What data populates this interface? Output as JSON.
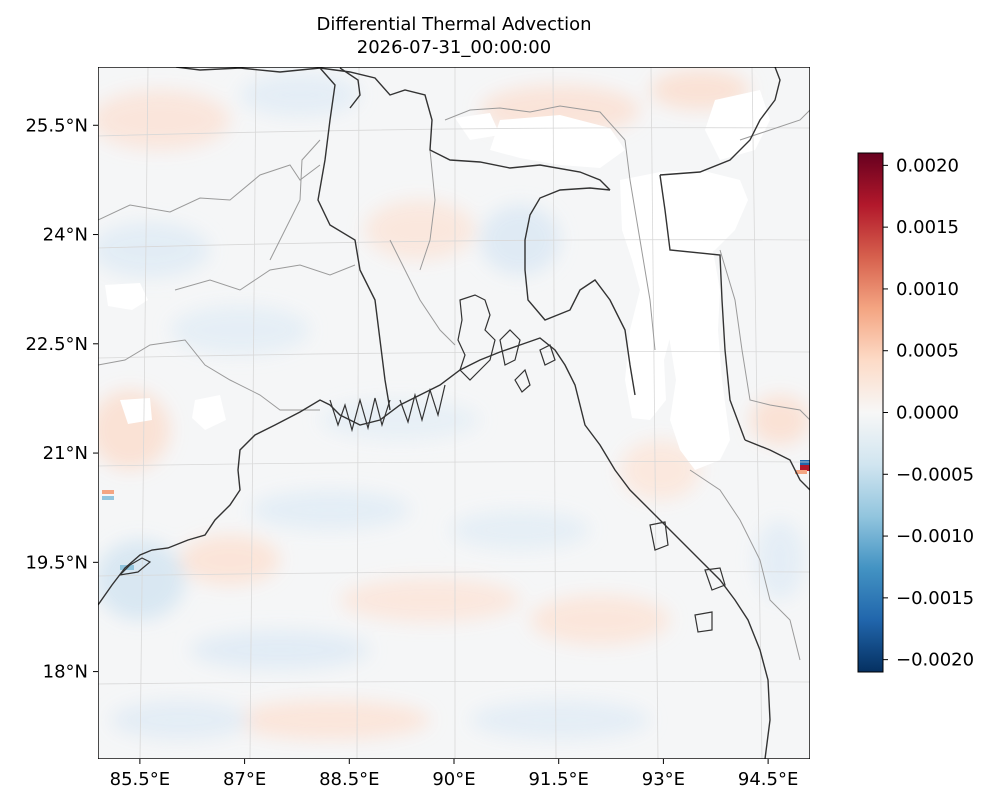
{
  "chart_data": {
    "type": "map",
    "title": "Differential Thermal Advection",
    "subtitle": "2026-07-31_00:00:00",
    "lon_range": [
      84.9,
      95.1
    ],
    "lat_range": [
      16.8,
      26.3
    ],
    "x_ticks": [
      {
        "value": 85.5,
        "label": "85.5°E"
      },
      {
        "value": 87,
        "label": "87°E"
      },
      {
        "value": 88.5,
        "label": "88.5°E"
      },
      {
        "value": 90,
        "label": "90°E"
      },
      {
        "value": 91.5,
        "label": "91.5°E"
      },
      {
        "value": 93,
        "label": "93°E"
      },
      {
        "value": 94.5,
        "label": "94.5°E"
      }
    ],
    "y_ticks": [
      {
        "value": 25.5,
        "label": "25.5°N"
      },
      {
        "value": 24,
        "label": "24°N"
      },
      {
        "value": 22.5,
        "label": "22.5°N"
      },
      {
        "value": 21,
        "label": "21°N"
      },
      {
        "value": 19.5,
        "label": "19.5°N"
      },
      {
        "value": 18,
        "label": "18°N"
      }
    ],
    "colorbar": {
      "colormap": "RdBu_r",
      "range": [
        -0.0021,
        0.0021
      ],
      "ticks": [
        {
          "value": 0.002,
          "label": "0.0020"
        },
        {
          "value": 0.0015,
          "label": "0.0015"
        },
        {
          "value": 0.001,
          "label": "0.0010"
        },
        {
          "value": 0.0005,
          "label": "0.0005"
        },
        {
          "value": 0,
          "label": "0.0000"
        },
        {
          "value": -0.0005,
          "label": "−0.0005"
        },
        {
          "value": -0.001,
          "label": "−0.0010"
        },
        {
          "value": -0.0015,
          "label": "−0.0015"
        },
        {
          "value": -0.002,
          "label": "−0.0020"
        }
      ]
    },
    "gridlines": true,
    "colors": {
      "coastline": "#333333",
      "borders": "#9a9a9a",
      "gridline": "#d8d8d8",
      "positive_max": "#67001f",
      "negative_max": "#053061"
    }
  }
}
